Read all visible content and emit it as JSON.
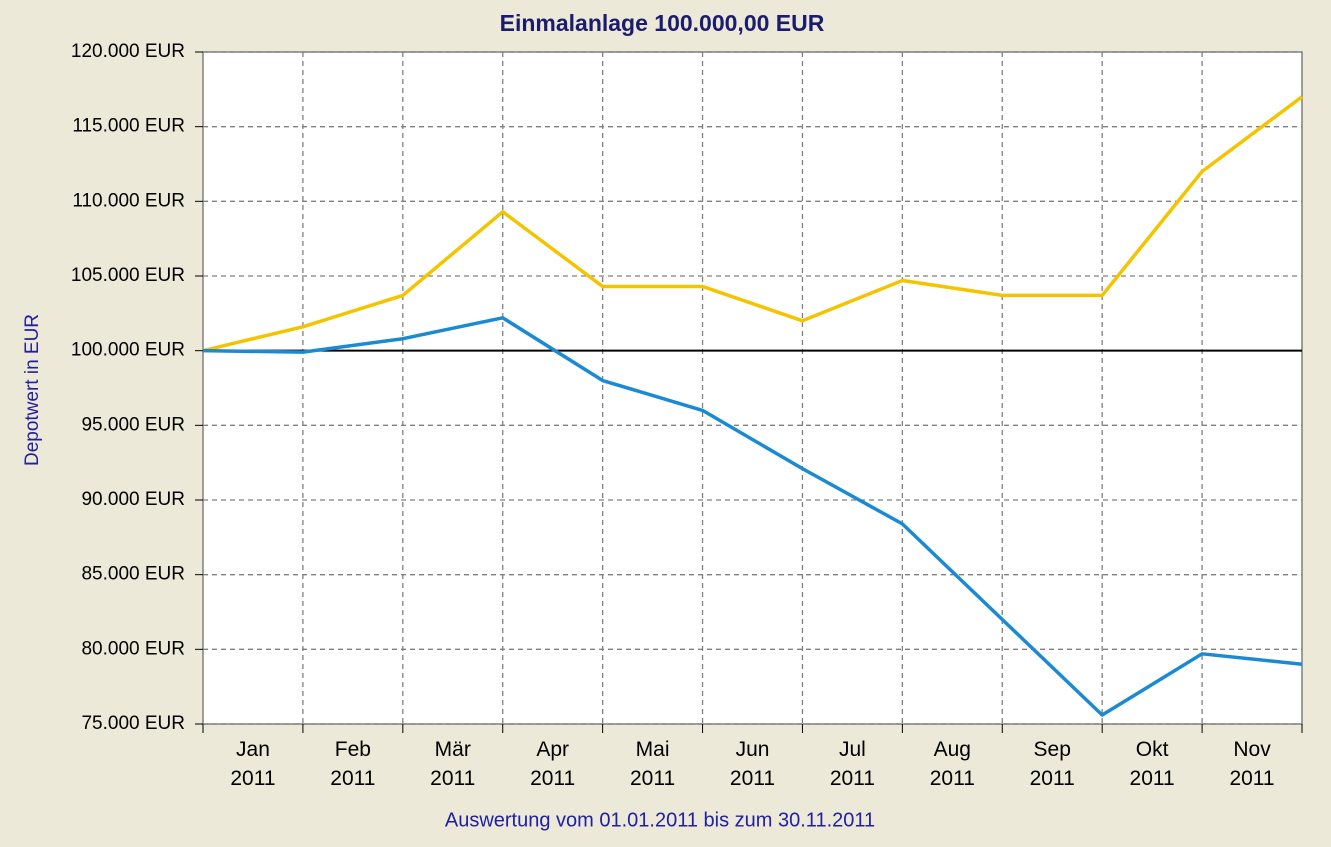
{
  "chart_data": {
    "type": "line",
    "title": "Einmalanlage 100.000,00 EUR",
    "ylabel": "Depotwert in EUR",
    "xlabel": "Auswertung vom 01.01.2011 bis zum 30.11.2011",
    "categories": [
      "Jan\n2011",
      "Feb\n2011",
      "Mär\n2011",
      "Apr\n2011",
      "Mai\n2011",
      "Jun\n2011",
      "Jul\n2011",
      "Aug\n2011",
      "Sep\n2011",
      "Okt\n2011",
      "Nov\n2011",
      null
    ],
    "series": [
      {
        "color": "#f5c400",
        "values": [
          100000,
          101600,
          103700,
          109300,
          104300,
          104300,
          102000,
          104700,
          103700,
          103700,
          112000,
          117000
        ]
      },
      {
        "color": "#1a8ad4",
        "values": [
          100000,
          99900,
          100800,
          102200,
          98000,
          96000,
          92100,
          88400,
          82000,
          75600,
          79700,
          79000
        ]
      }
    ],
    "reference_line": 100000,
    "ylim": [
      75000,
      120000
    ],
    "yticks": [
      {
        "value": 75000,
        "label": "75.000 EUR"
      },
      {
        "value": 80000,
        "label": "80.000 EUR"
      },
      {
        "value": 85000,
        "label": "85.000 EUR"
      },
      {
        "value": 90000,
        "label": "90.000 EUR"
      },
      {
        "value": 95000,
        "label": "95.000 EUR"
      },
      {
        "value": 100000,
        "label": "100.000 EUR"
      },
      {
        "value": 105000,
        "label": "105.000 EUR"
      },
      {
        "value": 110000,
        "label": "110.000 EUR"
      },
      {
        "value": 115000,
        "label": "115.000 EUR"
      },
      {
        "value": 120000,
        "label": "120.000 EUR"
      }
    ],
    "grid": true
  }
}
